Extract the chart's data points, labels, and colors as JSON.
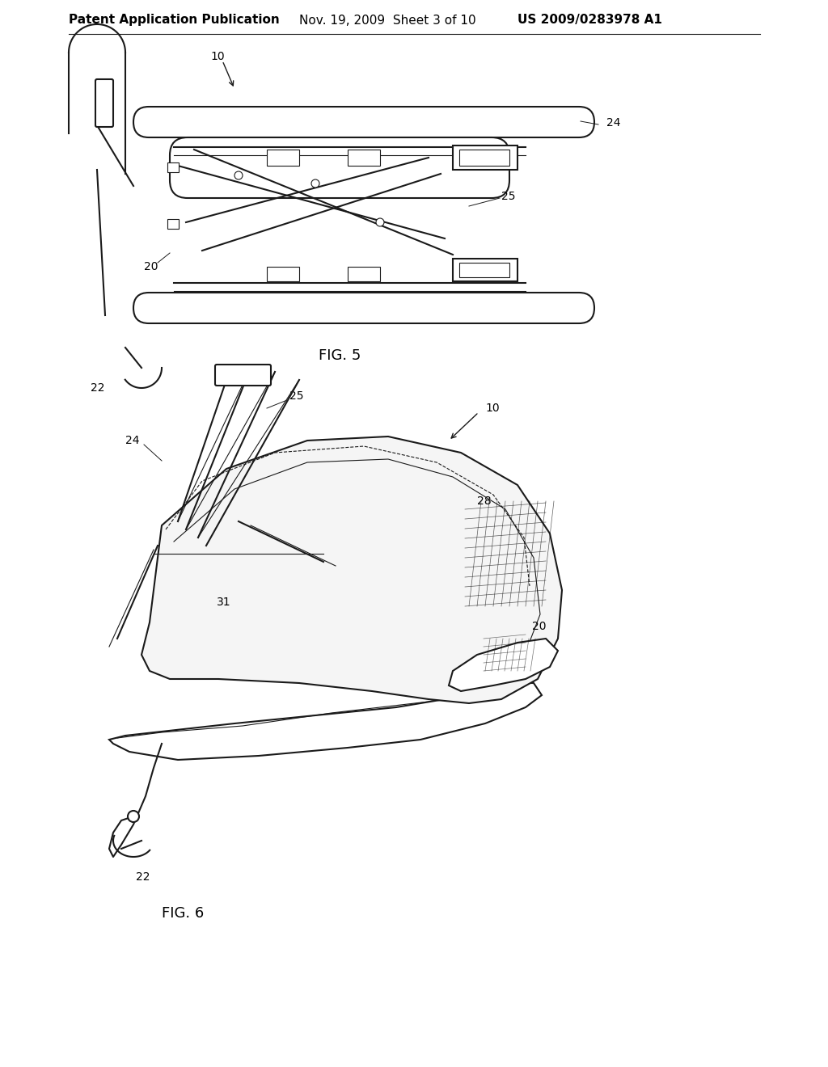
{
  "background_color": "#ffffff",
  "header_left": "Patent Application Publication",
  "header_mid": "Nov. 19, 2009  Sheet 3 of 10",
  "header_right": "US 2009/0283978 A1",
  "fig5_label": "FIG. 5",
  "fig6_label": "FIG. 6",
  "line_color": "#1a1a1a",
  "text_color": "#000000",
  "header_fontsize": 11,
  "label_fontsize": 10,
  "fig_label_fontsize": 13
}
